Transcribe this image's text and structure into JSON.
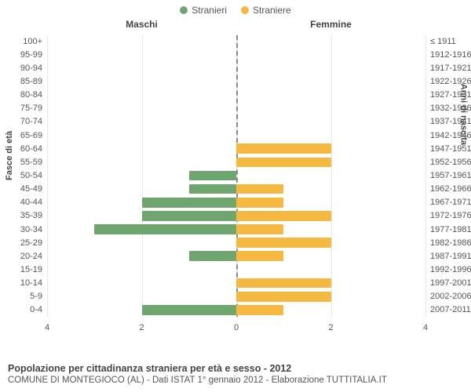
{
  "legend": {
    "male": {
      "label": "Stranieri",
      "color": "#6fa66f"
    },
    "female": {
      "label": "Straniere",
      "color": "#f5b841"
    }
  },
  "section_titles": {
    "left": "Maschi",
    "right": "Femmine"
  },
  "axis_titles": {
    "left": "Fasce di età",
    "right": "Anni di nascita"
  },
  "chart": {
    "type": "population-pyramid",
    "x_max": 4,
    "x_ticks_left": [
      4,
      2,
      0
    ],
    "x_ticks_right": [
      0,
      2,
      4
    ],
    "gridline_color": "#e6e6e6",
    "center_line_color": "#888888",
    "background_color": "#ffffff",
    "label_fontsize": 11,
    "rows": [
      {
        "age": "100+",
        "m": 0,
        "f": 0,
        "birth": "≤ 1911"
      },
      {
        "age": "95-99",
        "m": 0,
        "f": 0,
        "birth": "1912-1916"
      },
      {
        "age": "90-94",
        "m": 0,
        "f": 0,
        "birth": "1917-1921"
      },
      {
        "age": "85-89",
        "m": 0,
        "f": 0,
        "birth": "1922-1926"
      },
      {
        "age": "80-84",
        "m": 0,
        "f": 0,
        "birth": "1927-1931"
      },
      {
        "age": "75-79",
        "m": 0,
        "f": 0,
        "birth": "1932-1936"
      },
      {
        "age": "70-74",
        "m": 0,
        "f": 0,
        "birth": "1937-1941"
      },
      {
        "age": "65-69",
        "m": 0,
        "f": 0,
        "birth": "1942-1946"
      },
      {
        "age": "60-64",
        "m": 0,
        "f": 2,
        "birth": "1947-1951"
      },
      {
        "age": "55-59",
        "m": 0,
        "f": 2,
        "birth": "1952-1956"
      },
      {
        "age": "50-54",
        "m": 1,
        "f": 0,
        "birth": "1957-1961"
      },
      {
        "age": "45-49",
        "m": 1,
        "f": 1,
        "birth": "1962-1966"
      },
      {
        "age": "40-44",
        "m": 2,
        "f": 1,
        "birth": "1967-1971"
      },
      {
        "age": "35-39",
        "m": 2,
        "f": 2,
        "birth": "1972-1976"
      },
      {
        "age": "30-34",
        "m": 3,
        "f": 1,
        "birth": "1977-1981"
      },
      {
        "age": "25-29",
        "m": 0,
        "f": 2,
        "birth": "1982-1986"
      },
      {
        "age": "20-24",
        "m": 1,
        "f": 1,
        "birth": "1987-1991"
      },
      {
        "age": "15-19",
        "m": 0,
        "f": 0,
        "birth": "1992-1996"
      },
      {
        "age": "10-14",
        "m": 0,
        "f": 2,
        "birth": "1997-2001"
      },
      {
        "age": "5-9",
        "m": 0,
        "f": 2,
        "birth": "2002-2006"
      },
      {
        "age": "0-4",
        "m": 2,
        "f": 1,
        "birth": "2007-2011"
      }
    ]
  },
  "footer": {
    "title": "Popolazione per cittadinanza straniera per età e sesso - 2012",
    "subtitle": "COMUNE DI MONTEGIOCO (AL) - Dati ISTAT 1° gennaio 2012 - Elaborazione TUTTITALIA.IT"
  }
}
